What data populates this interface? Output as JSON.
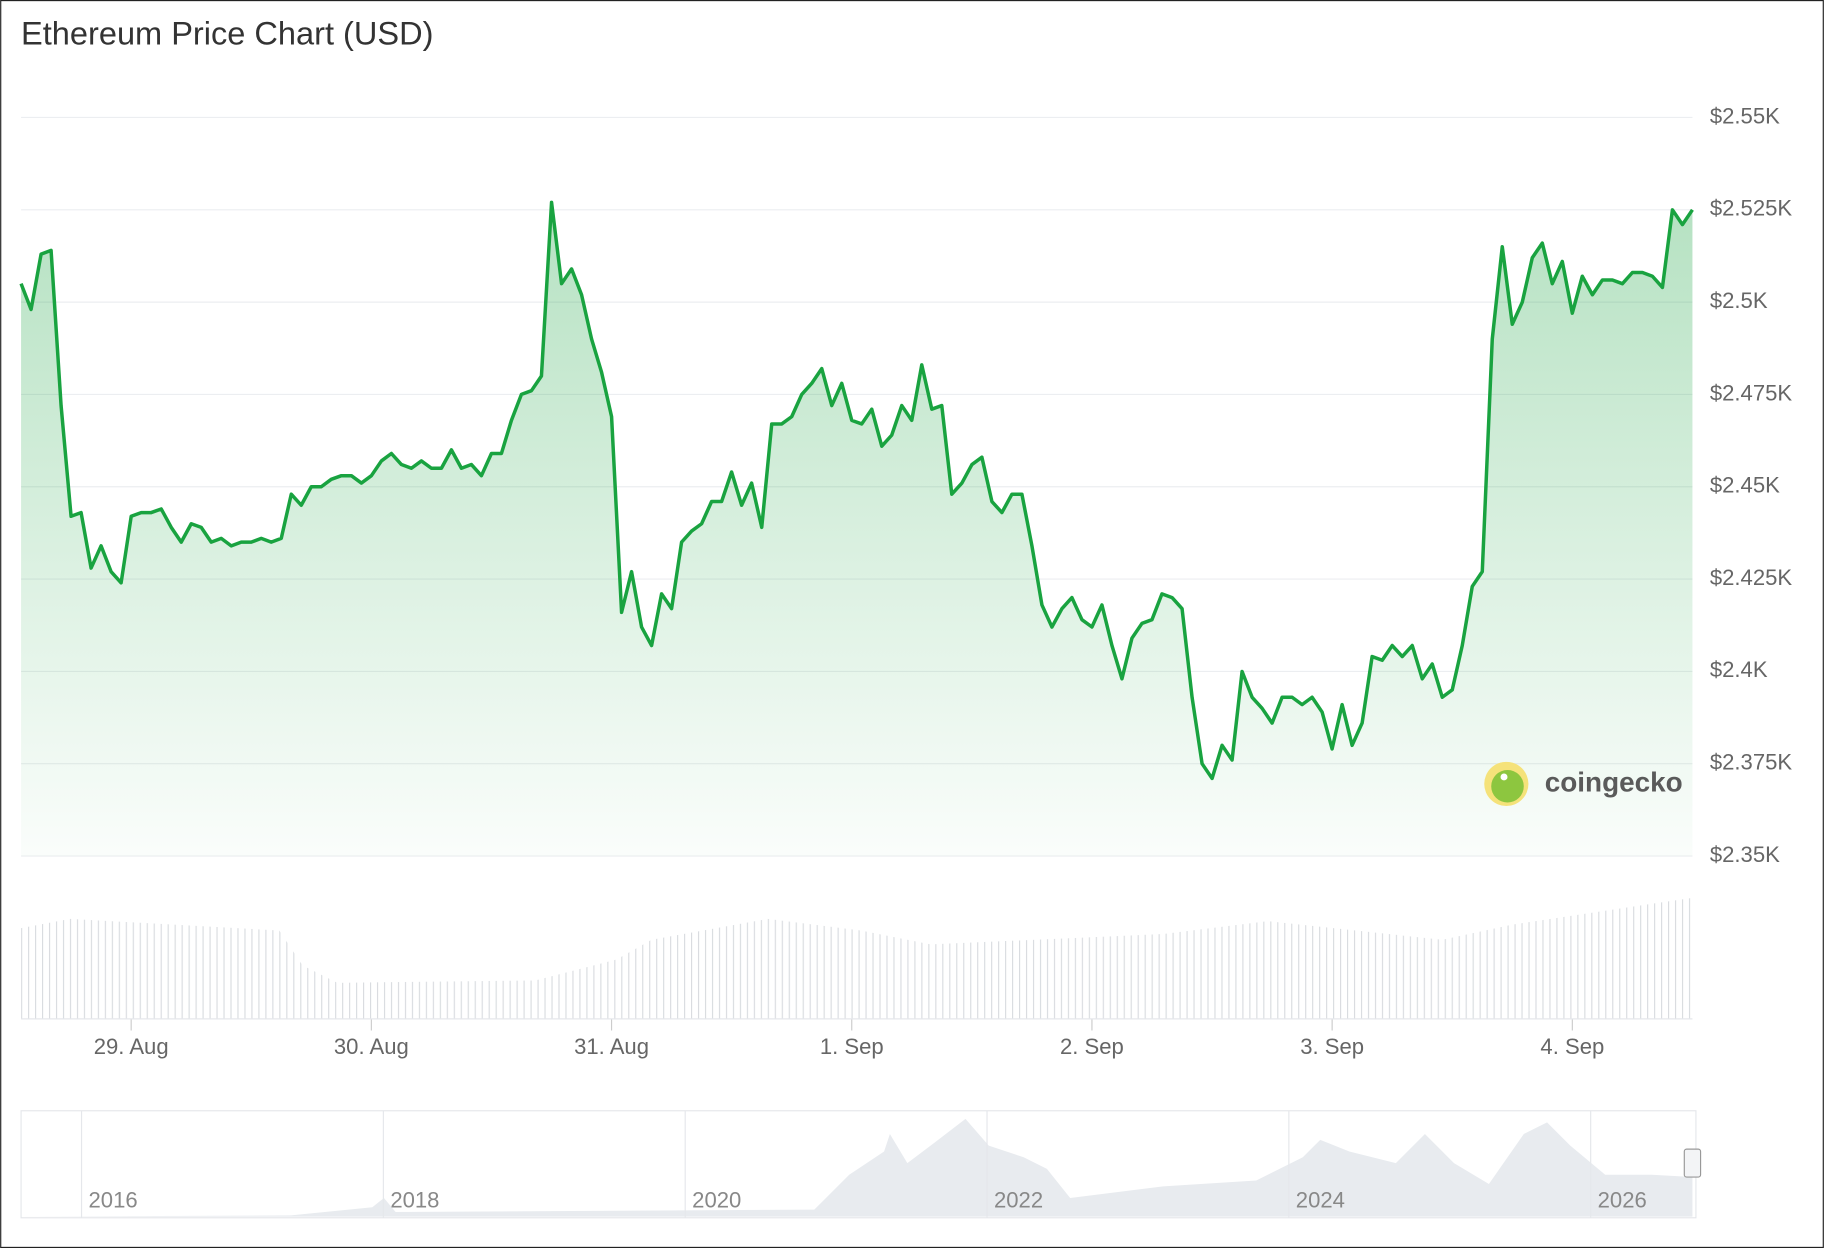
{
  "chart_data": {
    "type": "line",
    "title": "Ethereum Price Chart (USD)",
    "categories": [
      null,
      null,
      null,
      null,
      null,
      null,
      null,
      null,
      null,
      null,
      null,
      "29. Aug",
      null,
      null,
      null,
      null,
      null,
      null,
      null,
      null,
      null,
      null,
      null,
      null,
      null,
      null,
      null,
      null,
      null,
      null,
      null,
      null,
      null,
      null,
      null,
      "30. Aug",
      null,
      null,
      null,
      null,
      null,
      null,
      null,
      null,
      null,
      null,
      null,
      null,
      null,
      null,
      null,
      null,
      null,
      null,
      null,
      null,
      null,
      null,
      null,
      "31. Aug",
      null,
      null,
      null,
      null,
      null,
      null,
      null,
      null,
      null,
      null,
      null,
      null,
      null,
      null,
      null,
      null,
      null,
      null,
      null,
      null,
      null,
      null,
      null,
      "1. Sep",
      null,
      null,
      null,
      null,
      null,
      null,
      null,
      null,
      null,
      null,
      null,
      null,
      null,
      null,
      null,
      null,
      null,
      null,
      null,
      null,
      null,
      null,
      null,
      "2. Sep",
      null,
      null,
      null,
      null,
      null,
      null,
      null,
      null,
      null,
      null,
      null,
      null,
      null,
      null,
      null,
      null,
      null,
      null,
      null,
      null,
      null,
      null,
      null,
      "3. Sep",
      null,
      null,
      null,
      null,
      null,
      null,
      null,
      null,
      null,
      null,
      null,
      null,
      null,
      null,
      null,
      null,
      null,
      null,
      null,
      null,
      null,
      null,
      null,
      "4. Sep",
      null,
      null,
      null,
      null,
      null,
      null,
      null,
      null,
      null,
      null,
      null,
      null
    ],
    "values": [
      2505,
      2498,
      2513,
      2514,
      2472,
      2442,
      2443,
      2428,
      2434,
      2427,
      2424,
      2442,
      2443,
      2443,
      2444,
      2439,
      2435,
      2440,
      2439,
      2435,
      2436,
      2434,
      2435,
      2435,
      2436,
      2435,
      2436,
      2448,
      2445,
      2450,
      2450,
      2452,
      2453,
      2453,
      2451,
      2453,
      2457,
      2459,
      2456,
      2455,
      2457,
      2455,
      2455,
      2460,
      2455,
      2456,
      2453,
      2459,
      2459,
      2468,
      2475,
      2476,
      2480,
      2527,
      2505,
      2509,
      2502,
      2490,
      2481,
      2469,
      2416,
      2427,
      2412,
      2407,
      2421,
      2417,
      2435,
      2438,
      2440,
      2446,
      2446,
      2454,
      2445,
      2451,
      2439,
      2467,
      2467,
      2469,
      2475,
      2478,
      2482,
      2472,
      2478,
      2468,
      2467,
      2471,
      2461,
      2464,
      2472,
      2468,
      2483,
      2471,
      2472,
      2448,
      2451,
      2456,
      2458,
      2446,
      2443,
      2448,
      2448,
      2434,
      2418,
      2412,
      2417,
      2420,
      2414,
      2412,
      2418,
      2407,
      2398,
      2409,
      2413,
      2414,
      2421,
      2420,
      2417,
      2393,
      2375,
      2371,
      2380,
      2376,
      2400,
      2393,
      2390,
      2386,
      2393,
      2393,
      2391,
      2393,
      2389,
      2379,
      2391,
      2380,
      2386,
      2404,
      2403,
      2407,
      2404,
      2407,
      2398,
      2402,
      2393,
      2395,
      2407,
      2423,
      2427,
      2490,
      2515,
      2494,
      2500,
      2512,
      2516,
      2505,
      2511,
      2497,
      2507,
      2502,
      2506,
      2506,
      2505,
      2508,
      2508,
      2507,
      2504,
      2525,
      2521,
      2525
    ],
    "color": "#19a340",
    "ylim": [
      2350,
      2550
    ],
    "yticks": [
      {
        "value": 2550,
        "label": "$2.55K"
      },
      {
        "value": 2525,
        "label": "$2.525K"
      },
      {
        "value": 2500,
        "label": "$2.5K"
      },
      {
        "value": 2475,
        "label": "$2.475K"
      },
      {
        "value": 2450,
        "label": "$2.45K"
      },
      {
        "value": 2425,
        "label": "$2.425K"
      },
      {
        "value": 2400,
        "label": "$2.4K"
      },
      {
        "value": 2375,
        "label": "$2.375K"
      },
      {
        "value": 2350,
        "label": "$2.35K"
      }
    ],
    "grid": true,
    "watermark": "coingecko",
    "navigator_labels": [
      "2016",
      "2018",
      "2020",
      "2022",
      "2024",
      "2026"
    ]
  }
}
